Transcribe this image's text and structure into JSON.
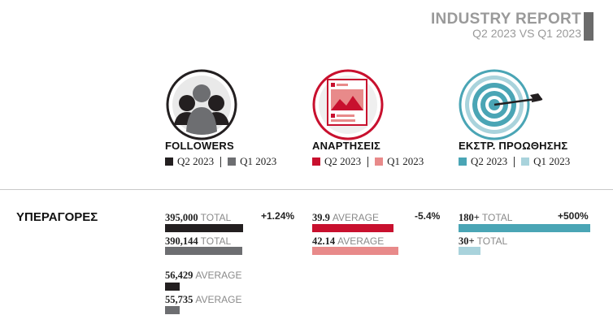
{
  "header": {
    "title": "INDUSTRY REPORT",
    "subtitle": "Q2 2023 VS Q1 2023"
  },
  "colors": {
    "followers_q2": "#231f20",
    "followers_q1": "#6d6e71",
    "posts_q2": "#c8102e",
    "posts_q1": "#e88a8a",
    "promo_q2": "#4aa5b5",
    "promo_q1": "#a9d3dc"
  },
  "metrics": [
    {
      "key": "followers",
      "icon": "followers-icon",
      "title": "FOLLOWERS",
      "q2": "Q2 2023",
      "q1": "Q1 2023"
    },
    {
      "key": "posts",
      "icon": "posts-icon",
      "title": "ΑΝΑΡΤΗΣΕΙΣ",
      "q2": "Q2 2023",
      "q1": "Q1 2023"
    },
    {
      "key": "promo",
      "icon": "target-icon",
      "title": "ΕΚΣΤΡ. ΠΡΟΩΘΗΣΗΣ",
      "q2": "Q2 2023",
      "q1": "Q1 2023"
    }
  ],
  "row": {
    "label": "ΥΠΕΡΑΓΟΡΕΣ"
  },
  "chart_data": [
    {
      "type": "bar",
      "group": "FOLLOWERS",
      "unit": "TOTAL",
      "series": [
        {
          "name": "Q2 2023",
          "value": 395000,
          "label": "395,000"
        },
        {
          "name": "Q1 2023",
          "value": 390144,
          "label": "390,144"
        }
      ],
      "change": "+1.24%"
    },
    {
      "type": "bar",
      "group": "FOLLOWERS",
      "unit": "AVERAGE",
      "series": [
        {
          "name": "Q2 2023",
          "value": 56429,
          "label": "56,429"
        },
        {
          "name": "Q1 2023",
          "value": 55735,
          "label": "55,735"
        }
      ]
    },
    {
      "type": "bar",
      "group": "ΑΝΑΡΤΗΣΕΙΣ",
      "unit": "AVERAGE",
      "series": [
        {
          "name": "Q2 2023",
          "value": 39.9,
          "label": "39.9"
        },
        {
          "name": "Q1 2023",
          "value": 42.14,
          "label": "42.14"
        }
      ],
      "change": "-5.4%"
    },
    {
      "type": "bar",
      "group": "ΕΚΣΤΡ. ΠΡΟΩΘΗΣΗΣ",
      "unit": "TOTAL",
      "series": [
        {
          "name": "Q2 2023",
          "value": 180,
          "label": "180+"
        },
        {
          "name": "Q1 2023",
          "value": 30,
          "label": "30+"
        }
      ],
      "change": "+500%"
    }
  ]
}
